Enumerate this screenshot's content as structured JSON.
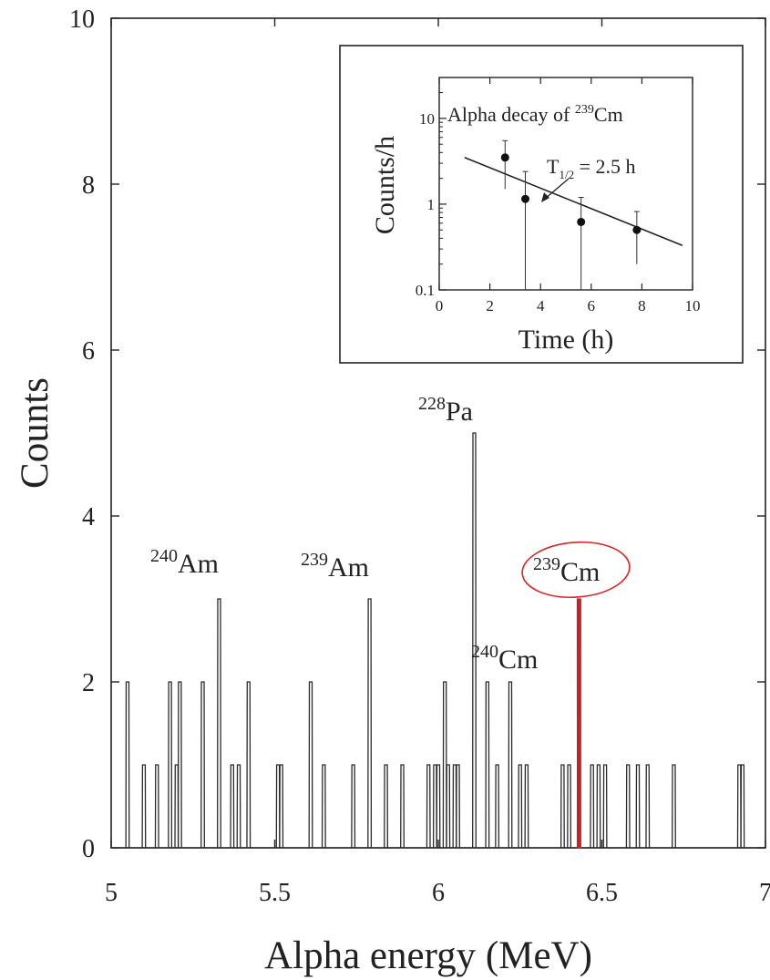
{
  "chart_data": [
    {
      "type": "histogram",
      "xlabel": "Alpha energy (MeV)",
      "ylabel": "Counts",
      "xlim": [
        5,
        7
      ],
      "ylim": [
        0,
        10
      ],
      "x_ticks": [
        5,
        5.5,
        6,
        6.5,
        7
      ],
      "x_tick_labels": [
        "5",
        "5.5",
        "6",
        "6.5",
        "7"
      ],
      "y_ticks": [
        0,
        2,
        4,
        6,
        8,
        10
      ],
      "y_tick_labels": [
        "0",
        "2",
        "4",
        "6",
        "8",
        "10"
      ],
      "bin_width_mev": 0.01,
      "peaks": [
        {
          "x": 5.05,
          "y": 2
        },
        {
          "x": 5.1,
          "y": 1
        },
        {
          "x": 5.14,
          "y": 1
        },
        {
          "x": 5.18,
          "y": 2
        },
        {
          "x": 5.2,
          "y": 1
        },
        {
          "x": 5.21,
          "y": 2
        },
        {
          "x": 5.28,
          "y": 2
        },
        {
          "x": 5.33,
          "y": 3
        },
        {
          "x": 5.37,
          "y": 1
        },
        {
          "x": 5.39,
          "y": 1
        },
        {
          "x": 5.42,
          "y": 2
        },
        {
          "x": 5.51,
          "y": 1
        },
        {
          "x": 5.52,
          "y": 1
        },
        {
          "x": 5.61,
          "y": 2
        },
        {
          "x": 5.65,
          "y": 1
        },
        {
          "x": 5.74,
          "y": 1
        },
        {
          "x": 5.79,
          "y": 3
        },
        {
          "x": 5.84,
          "y": 1
        },
        {
          "x": 5.89,
          "y": 1
        },
        {
          "x": 5.97,
          "y": 1
        },
        {
          "x": 5.99,
          "y": 1
        },
        {
          "x": 6.0,
          "y": 1
        },
        {
          "x": 6.02,
          "y": 2
        },
        {
          "x": 6.03,
          "y": 1
        },
        {
          "x": 6.05,
          "y": 1
        },
        {
          "x": 6.06,
          "y": 1
        },
        {
          "x": 6.11,
          "y": 5
        },
        {
          "x": 6.15,
          "y": 2
        },
        {
          "x": 6.18,
          "y": 1
        },
        {
          "x": 6.22,
          "y": 2
        },
        {
          "x": 6.25,
          "y": 1
        },
        {
          "x": 6.27,
          "y": 1
        },
        {
          "x": 6.38,
          "y": 1
        },
        {
          "x": 6.4,
          "y": 1
        },
        {
          "x": 6.43,
          "y": 3,
          "highlight": true
        },
        {
          "x": 6.47,
          "y": 1
        },
        {
          "x": 6.49,
          "y": 1
        },
        {
          "x": 6.51,
          "y": 1
        },
        {
          "x": 6.58,
          "y": 1
        },
        {
          "x": 6.61,
          "y": 1
        },
        {
          "x": 6.64,
          "y": 1
        },
        {
          "x": 6.72,
          "y": 1
        },
        {
          "x": 6.92,
          "y": 1
        },
        {
          "x": 6.93,
          "y": 1
        }
      ],
      "annotations": [
        {
          "id": "am240",
          "mass": "240",
          "symbol": "Am",
          "x": 5.33,
          "y": 3
        },
        {
          "id": "am239",
          "mass": "239",
          "symbol": "Am",
          "x": 5.79,
          "y": 3
        },
        {
          "id": "pa228",
          "mass": "228",
          "symbol": "Pa",
          "x": 6.11,
          "y": 5
        },
        {
          "id": "cm240",
          "mass": "240",
          "symbol": "Cm",
          "x": 6.22,
          "y": 2
        },
        {
          "id": "cm239",
          "mass": "239",
          "symbol": "Cm",
          "x": 6.43,
          "y": 3,
          "circled": true
        }
      ],
      "highlight_color": "#cc1f1f",
      "line_color": "#2a2a2a"
    },
    {
      "type": "scatter",
      "title_prefix": "Alpha decay of ",
      "title_mass": "239",
      "title_symbol": "Cm",
      "xlabel": "Time (h)",
      "ylabel": "Counts/h",
      "xlim": [
        0,
        10
      ],
      "ylim": [
        0.1,
        30
      ],
      "yscale": "log",
      "x_ticks": [
        0,
        2,
        4,
        6,
        8,
        10
      ],
      "x_tick_labels": [
        "0",
        "2",
        "4",
        "6",
        "8",
        "10"
      ],
      "y_ticks": [
        0.1,
        1,
        10
      ],
      "y_tick_labels": [
        "0.1",
        "1",
        "10"
      ],
      "points": [
        {
          "x": 2.6,
          "y": 3.5,
          "y_low": 1.5,
          "y_high": 5.5
        },
        {
          "x": 3.4,
          "y": 1.15,
          "y_low": 0.1,
          "y_high": 2.4
        },
        {
          "x": 5.6,
          "y": 0.62,
          "y_low": 0.1,
          "y_high": 1.2
        },
        {
          "x": 7.8,
          "y": 0.5,
          "y_low": 0.2,
          "y_high": 0.82
        }
      ],
      "fit_line": {
        "x": [
          1,
          9.6
        ],
        "y": [
          3.5,
          0.33
        ]
      },
      "half_life_symbol": "T",
      "half_life_subscript": "1/2",
      "half_life_value": " = 2.5 h"
    }
  ]
}
